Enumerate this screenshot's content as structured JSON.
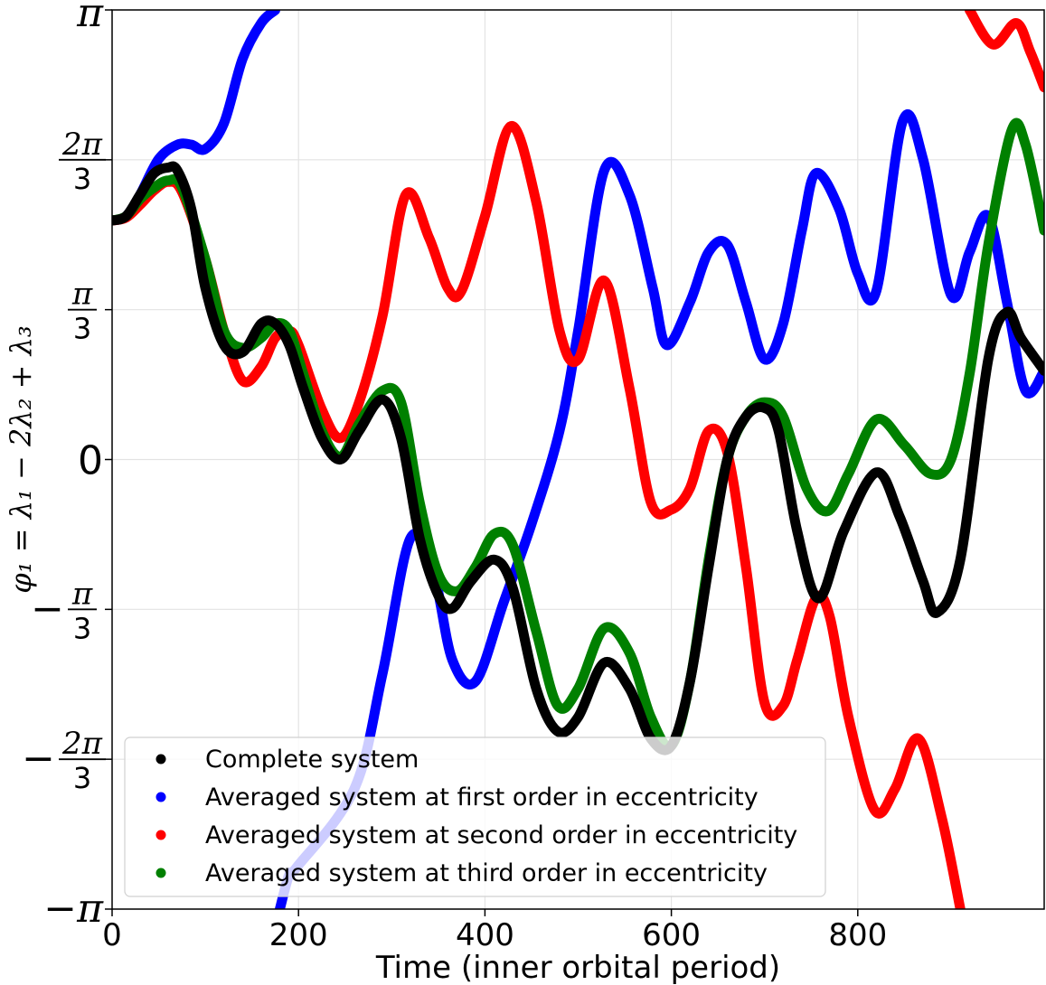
{
  "chart_data": {
    "type": "scatter",
    "title": "",
    "xlabel": "Time (inner orbital period)",
    "ylabel": "φ₁ = λ₁ − 2λ₂ + λ₃",
    "xlim": [
      0,
      1000
    ],
    "ylim": [
      -3.14159,
      3.14159
    ],
    "x_ticks": [
      {
        "value": 0,
        "label": "0"
      },
      {
        "value": 200,
        "label": "200"
      },
      {
        "value": 400,
        "label": "400"
      },
      {
        "value": 600,
        "label": "600"
      },
      {
        "value": 800,
        "label": "800"
      }
    ],
    "y_ticks": [
      {
        "value": -3.14159,
        "label": "−π",
        "kind": "pi",
        "sign": "−"
      },
      {
        "value": -2.0944,
        "num": "2π",
        "den": "3",
        "sign": "−",
        "kind": "frac"
      },
      {
        "value": -1.0472,
        "num": "π",
        "den": "3",
        "sign": "−",
        "kind": "frac"
      },
      {
        "value": 0,
        "label": "0",
        "kind": "plain"
      },
      {
        "value": 1.0472,
        "num": "π",
        "den": "3",
        "sign": "",
        "kind": "frac"
      },
      {
        "value": 2.0944,
        "num": "2π",
        "den": "3",
        "sign": "",
        "kind": "frac"
      },
      {
        "value": 3.14159,
        "label": "π",
        "kind": "pi",
        "sign": ""
      }
    ],
    "grid": true,
    "legend_position": "bottom-left",
    "series": [
      {
        "name": "Complete system",
        "color": "#000000",
        "x": [
          0,
          15,
          30,
          45,
          60,
          70,
          85,
          100,
          120,
          140,
          160,
          175,
          190,
          205,
          225,
          245,
          265,
          290,
          310,
          330,
          350,
          365,
          385,
          410,
          430,
          455,
          478,
          500,
          528,
          555,
          578,
          600,
          620,
          640,
          660,
          680,
          700,
          715,
          735,
          758,
          785,
          820,
          845,
          870,
          885,
          910,
          940,
          960,
          975,
          1000
        ],
        "y": [
          1.67,
          1.7,
          1.85,
          2.0,
          2.04,
          2.02,
          1.75,
          1.2,
          0.8,
          0.75,
          0.95,
          0.95,
          0.8,
          0.5,
          0.15,
          0.0,
          0.2,
          0.42,
          0.15,
          -0.55,
          -0.95,
          -1.04,
          -0.85,
          -0.7,
          -0.9,
          -1.6,
          -1.9,
          -1.8,
          -1.42,
          -1.6,
          -1.95,
          -2.0,
          -1.55,
          -0.75,
          0.0,
          0.3,
          0.36,
          0.2,
          -0.5,
          -0.97,
          -0.5,
          -0.09,
          -0.4,
          -0.85,
          -1.07,
          -0.7,
          0.7,
          1.03,
          0.85,
          0.62
        ]
      },
      {
        "name": "Averaged system at first order in eccentricity",
        "color": "#0000ff",
        "x": [
          0,
          15,
          30,
          50,
          70,
          85,
          100,
          120,
          140,
          160,
          175,
          180,
          190,
          198,
          260,
          290,
          320,
          345,
          365,
          390,
          420,
          450,
          480,
          500,
          528,
          555,
          580,
          595,
          620,
          640,
          660,
          680,
          700,
          720,
          740,
          755,
          780,
          800,
          820,
          848,
          870,
          900,
          920,
          940,
          960,
          980,
          1000
        ],
        "y": [
          1.67,
          1.7,
          1.85,
          2.1,
          2.2,
          2.2,
          2.17,
          2.35,
          2.8,
          3.05,
          3.14,
          -3.14,
          -2.9,
          -2.85,
          -2.3,
          -1.5,
          -0.55,
          -0.8,
          -1.4,
          -1.55,
          -1.0,
          -0.45,
          0.2,
          0.9,
          2.02,
          1.85,
          1.2,
          0.8,
          1.1,
          1.45,
          1.5,
          1.1,
          0.7,
          0.95,
          1.6,
          2.0,
          1.75,
          1.3,
          1.18,
          2.36,
          2.1,
          1.15,
          1.45,
          1.7,
          1.1,
          0.48,
          0.62
        ]
      },
      {
        "name": "Averaged system at second order in eccentricity",
        "color": "#ff0000",
        "x": [
          0,
          15,
          30,
          45,
          60,
          75,
          100,
          120,
          140,
          160,
          175,
          190,
          200,
          225,
          245,
          265,
          290,
          315,
          340,
          360,
          375,
          400,
          428,
          455,
          480,
          500,
          528,
          555,
          578,
          600,
          620,
          640,
          660,
          680,
          700,
          720,
          735,
          755,
          770,
          790,
          818,
          840,
          865,
          890,
          910,
          920,
          945,
          970,
          985,
          1000
        ],
        "y": [
          1.67,
          1.69,
          1.78,
          1.88,
          1.94,
          1.87,
          1.4,
          0.9,
          0.55,
          0.65,
          0.85,
          0.9,
          0.8,
          0.35,
          0.15,
          0.4,
          1.0,
          1.85,
          1.55,
          1.2,
          1.18,
          1.7,
          2.33,
          1.8,
          0.9,
          0.7,
          1.25,
          0.5,
          -0.3,
          -0.35,
          -0.2,
          0.2,
          0.05,
          -0.75,
          -1.7,
          -1.72,
          -1.4,
          -0.97,
          -1.1,
          -1.8,
          -2.45,
          -2.3,
          -1.95,
          -2.5,
          -3.14,
          3.14,
          2.9,
          3.05,
          2.85,
          2.6
        ]
      },
      {
        "name": "Averaged system at third order in eccentricity",
        "color": "#008000",
        "x": [
          0,
          15,
          30,
          45,
          60,
          75,
          100,
          120,
          140,
          160,
          175,
          190,
          205,
          225,
          245,
          265,
          290,
          310,
          330,
          350,
          370,
          390,
          410,
          430,
          455,
          478,
          500,
          528,
          555,
          578,
          600,
          620,
          640,
          660,
          680,
          700,
          720,
          745,
          768,
          790,
          820,
          850,
          878,
          900,
          920,
          940,
          965,
          980,
          1000
        ],
        "y": [
          1.67,
          1.7,
          1.82,
          1.9,
          1.95,
          1.9,
          1.4,
          0.9,
          0.78,
          0.85,
          0.95,
          0.9,
          0.6,
          0.2,
          0.02,
          0.25,
          0.48,
          0.4,
          -0.3,
          -0.8,
          -0.92,
          -0.75,
          -0.52,
          -0.6,
          -1.2,
          -1.72,
          -1.6,
          -1.18,
          -1.35,
          -1.8,
          -2.0,
          -1.55,
          -0.7,
          0.0,
          0.3,
          0.4,
          0.3,
          -0.2,
          -0.36,
          -0.1,
          0.28,
          0.1,
          -0.1,
          0.0,
          0.6,
          1.5,
          2.3,
          2.2,
          1.6
        ]
      }
    ]
  }
}
